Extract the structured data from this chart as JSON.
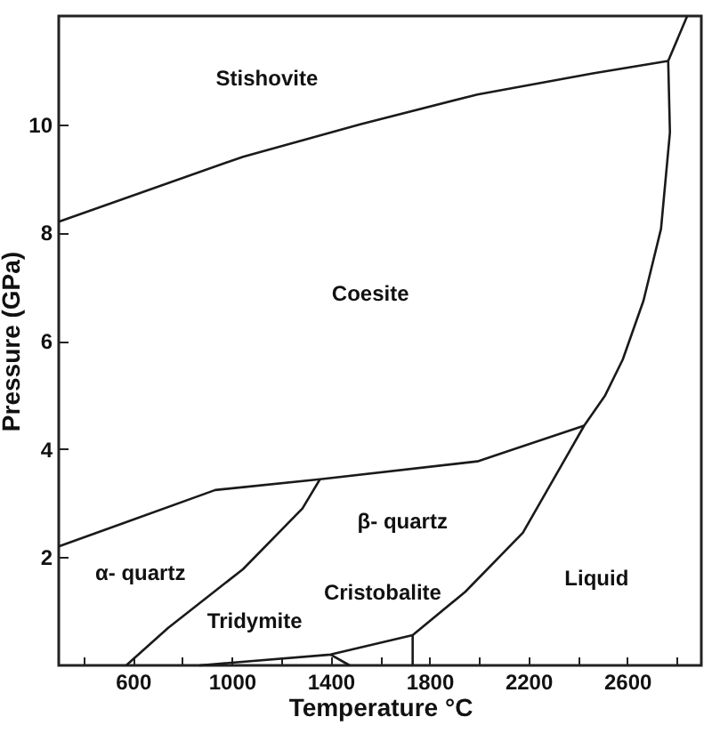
{
  "chart_data": {
    "type": "line",
    "xlabel": "Temperature °C",
    "ylabel": "Pressure (GPa)",
    "xlim": [
      300,
      2900
    ],
    "ylim": [
      0,
      12
    ],
    "xticks": [
      {
        "value": 400,
        "label": null
      },
      600,
      {
        "value": 800,
        "label": null
      },
      1000,
      {
        "value": 1200,
        "label": null
      },
      1400,
      {
        "value": 1600,
        "label": null
      },
      1800,
      {
        "value": 2000,
        "label": null
      },
      2200,
      {
        "value": 2400,
        "label": null
      },
      2600,
      {
        "value": 2800,
        "label": null
      }
    ],
    "yticks": [
      2,
      4,
      6,
      8,
      10
    ],
    "grid": false,
    "marker": "none",
    "line_style": "solid",
    "series": [
      {
        "color": "#1a1a1a",
        "x": [
          300,
          1046,
          1520,
          1994,
          2461,
          2766
        ],
        "values": [
          8.2,
          9.4,
          10.0,
          10.55,
          10.94,
          11.17
        ]
      },
      {
        "color": "#1a1a1a",
        "x": [
          2843,
          2766,
          2773,
          2737,
          2666,
          2582,
          2511,
          2426,
          2178,
          1945,
          1732,
          1732
        ],
        "values": [
          12.0,
          11.17,
          9.85,
          8.07,
          6.74,
          5.65,
          4.99,
          4.43,
          2.45,
          1.36,
          0.56,
          0
        ]
      },
      {
        "color": "#1a1a1a",
        "x": [
          300,
          550,
          933,
          1357,
          1994,
          2426
        ],
        "values": [
          2.2,
          2.61,
          3.24,
          3.44,
          3.77,
          4.43
        ]
      },
      {
        "color": "#1a1a1a",
        "x": [
          1357,
          1286,
          1046,
          742,
          573
        ],
        "values": [
          3.44,
          2.9,
          1.78,
          0.69,
          0
        ]
      },
      {
        "color": "#1a1a1a",
        "x": [
          870,
          1400,
          1732
        ],
        "values": [
          0,
          0.2,
          0.56
        ]
      },
      {
        "color": "#1a1a1a",
        "x": [
          1400,
          1477
        ],
        "values": [
          0.2,
          0
        ]
      }
    ],
    "annotations": [
      "Stishovite",
      "Coesite",
      "β- quartz",
      "α- quartz",
      "Cristobalite",
      "Tridymite",
      "Liquid"
    ]
  }
}
